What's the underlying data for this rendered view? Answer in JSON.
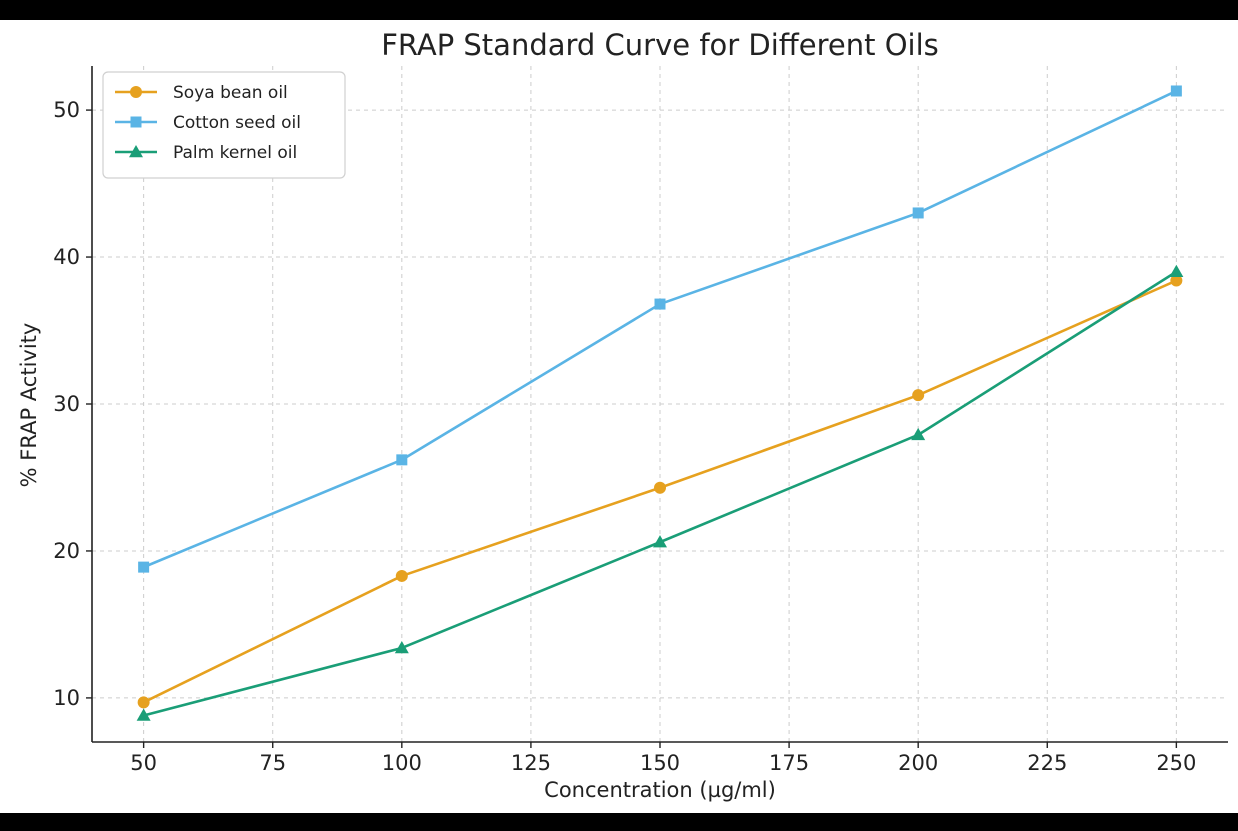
{
  "chart_data": {
    "type": "line",
    "title": "FRAP Standard Curve for Different Oils",
    "xlabel": "Concentration (µg/ml)",
    "ylabel": "% FRAP Activity",
    "x": [
      50,
      100,
      150,
      200,
      250
    ],
    "xlim": [
      40,
      260
    ],
    "ylim": [
      7,
      53
    ],
    "xticks": [
      50,
      75,
      100,
      125,
      150,
      175,
      200,
      225,
      250
    ],
    "yticks": [
      10,
      20,
      30,
      40,
      50
    ],
    "grid": true,
    "legend_position": "top-left",
    "series": [
      {
        "name": "Soya bean oil",
        "values": [
          9.7,
          18.3,
          24.3,
          30.6,
          38.4
        ],
        "color": "#E6A11F",
        "marker": "circle"
      },
      {
        "name": "Cotton seed oil",
        "values": [
          18.9,
          26.2,
          36.8,
          43.0,
          51.3
        ],
        "color": "#5AB4E5",
        "marker": "square"
      },
      {
        "name": "Palm kernel oil",
        "values": [
          8.8,
          13.4,
          20.6,
          27.9,
          39.0
        ],
        "color": "#1A9E77",
        "marker": "triangle"
      }
    ]
  }
}
